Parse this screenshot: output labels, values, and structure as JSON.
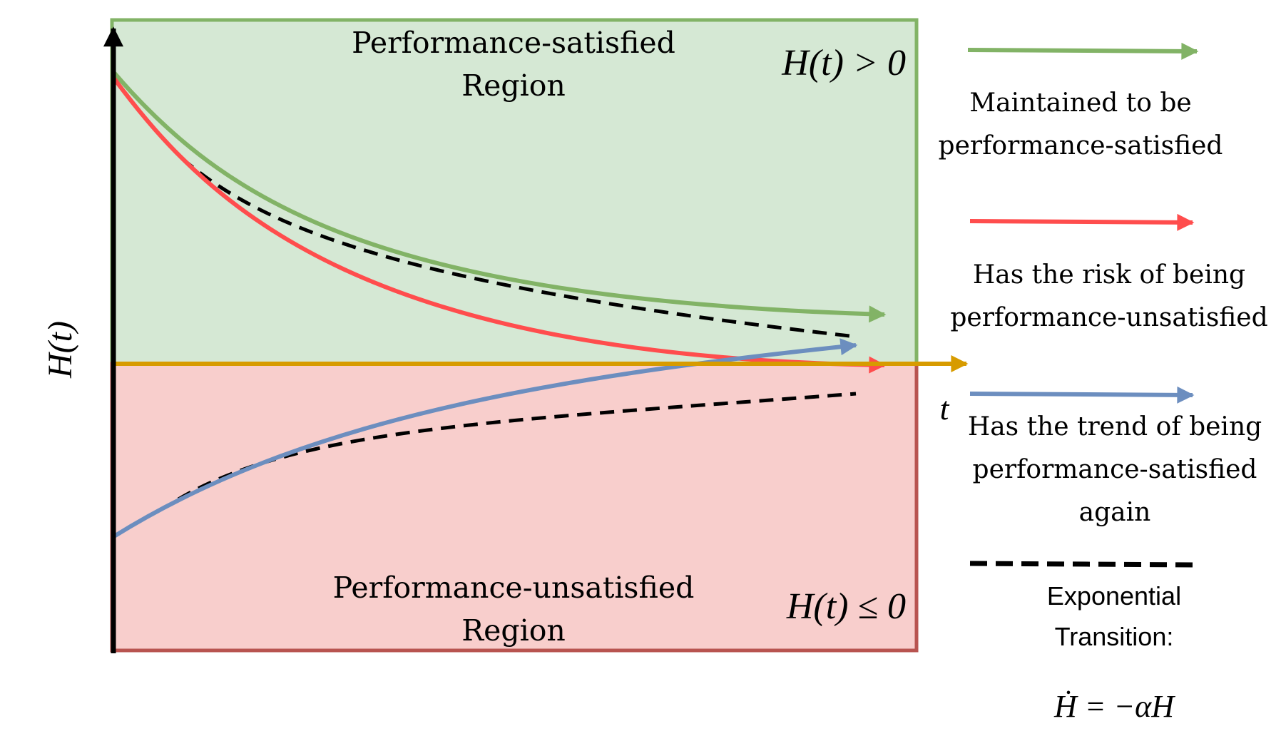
{
  "regions": {
    "satisfied": {
      "title_line1": "Performance-satisfied",
      "title_line2": "Region",
      "condition": "H(t) > 0",
      "fill": "#d5e8d4",
      "border": "#82b366"
    },
    "unsatisfied": {
      "title_line1": "Performance-unsatisfied",
      "title_line2": "Region",
      "condition": "H(t) ≤ 0",
      "fill": "#f8cecc",
      "border": "#b85450"
    }
  },
  "axes": {
    "y_label": "H(t)",
    "x_label": "t",
    "y_axis_color": "#000000",
    "x_axis_color": "#d79b00"
  },
  "legend": [
    {
      "color": "#82b366",
      "style": "solid-arrow",
      "line1": "Maintained to be",
      "line2": "performance-satisfied"
    },
    {
      "color": "#ff4d4d",
      "style": "solid-arrow",
      "line1": "Has the risk of being",
      "line2": "performance-unsatisfied"
    },
    {
      "color": "#6c8ebf",
      "style": "solid-arrow",
      "line1": "Has the trend of being",
      "line2": "performance-satisfied",
      "line3": "again"
    },
    {
      "color": "#000000",
      "style": "dashed",
      "line1": "Exponential",
      "line2": "Transition:",
      "formula": "Ḣ = −αH"
    }
  ]
}
